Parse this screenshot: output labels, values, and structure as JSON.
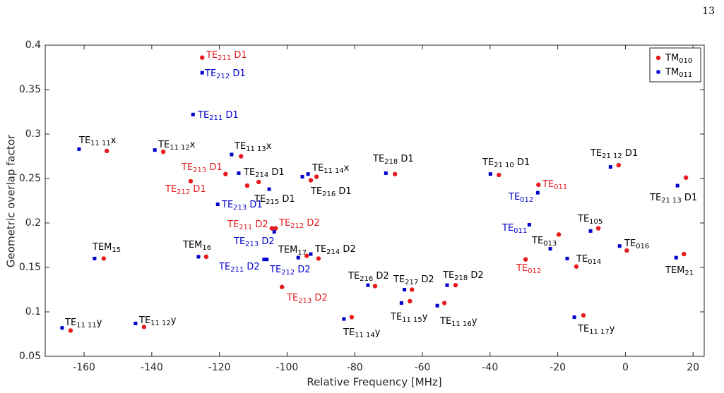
{
  "page_number": "13",
  "chart_data": {
    "type": "scatter",
    "xlabel": "Relative Frequency [MHz]",
    "ylabel": "Geometric overlap factor",
    "xlim": [
      -171.5,
      23.3
    ],
    "ylim": [
      0.05,
      0.4
    ],
    "xticks": [
      -160,
      -140,
      -120,
      -100,
      -80,
      -60,
      -40,
      -20,
      0,
      20
    ],
    "yticks": [
      0.05,
      0.1,
      0.15,
      0.2,
      0.25,
      0.3,
      0.35,
      0.4
    ],
    "legend": "northeast",
    "series": [
      {
        "name": "TM",
        "name_sub": "010",
        "color": "#e41a1c",
        "marker": "circle",
        "x": [
          -125.1,
          -164,
          -142.3,
          -154.2,
          -153.3,
          -136.6,
          -123.9,
          -128.5,
          -118.2,
          -113.6,
          -111.8,
          -108.4,
          -104.5,
          -103.4,
          -101.5,
          -94.2,
          -93.0,
          -91.3,
          -90.7,
          -80.9,
          -74.0,
          -68.1,
          -63.7,
          -63.1,
          -53.5,
          -50.2,
          -37.4,
          -25.7,
          -29.5,
          -19.7,
          -14.5,
          -12.4,
          -8.0,
          -2.0,
          0.4,
          17.3,
          17.9
        ],
        "values": [
          0.386,
          0.079,
          0.083,
          0.16,
          0.281,
          0.28,
          0.162,
          0.247,
          0.255,
          0.275,
          0.242,
          0.246,
          0.194,
          0.194,
          0.128,
          0.163,
          0.248,
          0.252,
          0.16,
          0.094,
          0.129,
          0.255,
          0.112,
          0.125,
          0.11,
          0.13,
          0.254,
          0.243,
          0.159,
          0.187,
          0.151,
          0.096,
          0.194,
          0.265,
          0.169,
          0.165,
          0.251
        ]
      },
      {
        "name": "TM",
        "name_sub": "011",
        "color": "#0000cc",
        "marker": "square",
        "x": [
          -166.5,
          -161.5,
          -144.8,
          -156.9,
          -139.1,
          -125.1,
          -127.8,
          -126.2,
          -116.4,
          -114.3,
          -120.5,
          -106.8,
          -106.0,
          -105.3,
          -103.8,
          -96.7,
          -95.5,
          -93.8,
          -93.0,
          -83.2,
          -76.1,
          -70.8,
          -66.2,
          -65.3,
          -55.6,
          -52.7,
          -39.9,
          -28.4,
          -25.9,
          -22.2,
          -17.2,
          -15.1,
          -10.3,
          -4.4,
          -1.7,
          15.0,
          15.4
        ],
        "values": [
          0.082,
          0.283,
          0.087,
          0.16,
          0.282,
          0.369,
          0.322,
          0.162,
          0.277,
          0.256,
          0.221,
          0.159,
          0.159,
          0.238,
          0.19,
          0.161,
          0.252,
          0.255,
          0.165,
          0.092,
          0.13,
          0.256,
          0.11,
          0.125,
          0.107,
          0.13,
          0.255,
          0.198,
          0.234,
          0.171,
          0.16,
          0.094,
          0.191,
          0.263,
          0.174,
          0.161,
          0.242
        ]
      }
    ],
    "annotations": [
      {
        "color": "#e41a1c",
        "parts": [
          "TE",
          "211",
          " D1"
        ]
      },
      {
        "color": "#0000cc",
        "parts": [
          "TE",
          "212",
          " D1"
        ]
      },
      {
        "color": "#0000cc",
        "parts": [
          "TE",
          "211",
          " D1"
        ]
      },
      {
        "color": "#000000",
        "parts": [
          "TE",
          "11 11",
          "x"
        ]
      },
      {
        "color": "#000000",
        "parts": [
          "TE",
          "11 12",
          "x"
        ]
      },
      {
        "color": "#000000",
        "parts": [
          "TE",
          "11 13",
          "x"
        ]
      },
      {
        "color": "#e41a1c",
        "parts": [
          "TE",
          "213",
          " D1"
        ]
      },
      {
        "color": "#000000",
        "parts": [
          "TE",
          "214",
          " D1"
        ]
      },
      {
        "color": "#e41a1c",
        "parts": [
          "TE",
          "212",
          " D1"
        ]
      },
      {
        "color": "#000000",
        "parts": [
          "TE",
          "215",
          " D1"
        ]
      },
      {
        "color": "#0000cc",
        "parts": [
          "TE",
          "213",
          " D1"
        ]
      },
      {
        "color": "#000000",
        "parts": [
          "TE",
          "11 14",
          "x"
        ]
      },
      {
        "color": "#000000",
        "parts": [
          "TE",
          "216",
          " D1"
        ]
      },
      {
        "color": "#000000",
        "parts": [
          "TE",
          "218",
          " D1"
        ]
      },
      {
        "color": "#000000",
        "parts": [
          "TE",
          "21 10",
          " D1"
        ]
      },
      {
        "color": "#e41a1c",
        "parts": [
          "TE",
          "011"
        ]
      },
      {
        "color": "#0000cc",
        "parts": [
          "TE",
          "012"
        ]
      },
      {
        "color": "#000000",
        "parts": [
          "TE",
          "21 12",
          " D1"
        ]
      },
      {
        "color": "#000000",
        "parts": [
          "TE",
          "21 13",
          " D1"
        ]
      },
      {
        "color": "#e41a1c",
        "parts": [
          "TE",
          "211",
          " D2"
        ]
      },
      {
        "color": "#e41a1c",
        "parts": [
          "TE",
          "212",
          " D2"
        ]
      },
      {
        "color": "#0000cc",
        "parts": [
          "TE",
          "213",
          " D2"
        ]
      },
      {
        "color": "#000000",
        "parts": [
          "TEM",
          "15"
        ]
      },
      {
        "color": "#000000",
        "parts": [
          "TEM",
          "16"
        ]
      },
      {
        "color": "#000000",
        "parts": [
          "TEM",
          "17"
        ]
      },
      {
        "color": "#000000",
        "parts": [
          "TE",
          "214",
          " D2"
        ]
      },
      {
        "color": "#0000cc",
        "parts": [
          "TE",
          "211",
          " D2"
        ]
      },
      {
        "color": "#0000cc",
        "parts": [
          "TE",
          "212",
          " D2"
        ]
      },
      {
        "color": "#e41a1c",
        "parts": [
          "TE",
          "213",
          " D2"
        ]
      },
      {
        "color": "#0000cc",
        "parts": [
          "TE",
          "011"
        ]
      },
      {
        "color": "#000000",
        "parts": [
          "TE",
          "013"
        ]
      },
      {
        "color": "#000000",
        "parts": [
          "TE",
          "105"
        ]
      },
      {
        "color": "#000000",
        "parts": [
          "TE",
          "016"
        ]
      },
      {
        "color": "#000000",
        "parts": [
          "TE",
          "014"
        ]
      },
      {
        "color": "#e41a1c",
        "parts": [
          "TE",
          "012"
        ]
      },
      {
        "color": "#000000",
        "parts": [
          "TEM",
          "21"
        ]
      },
      {
        "color": "#000000",
        "parts": [
          "TE",
          "216",
          " D2"
        ]
      },
      {
        "color": "#000000",
        "parts": [
          "TE",
          "217",
          " D2"
        ]
      },
      {
        "color": "#000000",
        "parts": [
          "TE",
          "218",
          " D2"
        ]
      },
      {
        "color": "#000000",
        "parts": [
          "TE",
          "11 15",
          "y"
        ]
      },
      {
        "color": "#000000",
        "parts": [
          "TE",
          "11 16",
          "y"
        ]
      },
      {
        "color": "#000000",
        "parts": [
          "TE",
          "11 14",
          "y"
        ]
      },
      {
        "color": "#000000",
        "parts": [
          "TE",
          "11 17",
          "y"
        ]
      },
      {
        "color": "#000000",
        "parts": [
          "TE",
          "11 11",
          "y"
        ]
      },
      {
        "color": "#000000",
        "parts": [
          "TE",
          "11 12",
          "y"
        ]
      }
    ]
  }
}
